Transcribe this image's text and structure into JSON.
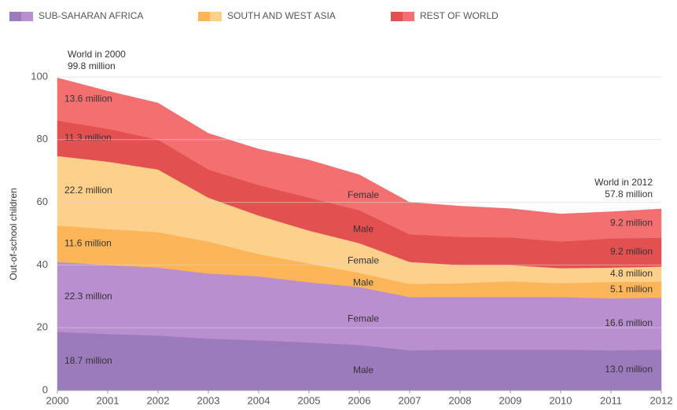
{
  "chart_data": {
    "type": "stacked_area",
    "y_label": "Out-of-school children",
    "x": [
      2000,
      2001,
      2002,
      2003,
      2004,
      2005,
      2006,
      2007,
      2008,
      2009,
      2010,
      2011,
      2012
    ],
    "xlim": [
      2000,
      2012
    ],
    "xticks": [
      2000,
      2001,
      2002,
      2003,
      2004,
      2005,
      2006,
      2007,
      2008,
      2009,
      2010,
      2011,
      2012
    ],
    "ylim": [
      0,
      100
    ],
    "yticks": [
      0,
      20,
      40,
      60,
      80,
      100
    ],
    "grid": true,
    "annotations": [
      {
        "lines": [
          "World in 2000",
          "99.8 million"
        ]
      },
      {
        "lines": [
          "World in 2012",
          "57.8 million"
        ]
      }
    ],
    "groups": [
      {
        "name": "SUB-SAHARAN AFRICA",
        "series": [
          {
            "name": "Male",
            "color": "#9c7bbd",
            "values": [
              18.7,
              18.0,
              17.5,
              16.5,
              16.0,
              15.3,
              14.5,
              12.8,
              13.0,
              13.0,
              13.0,
              12.8,
              13.0
            ],
            "value_labels": [
              "18.7 million",
              null,
              null,
              null,
              null,
              null,
              null,
              null,
              null,
              null,
              null,
              null,
              "13.0 million"
            ]
          },
          {
            "name": "Female",
            "color": "#b98fcf",
            "values": [
              22.3,
              22.0,
              21.7,
              20.8,
              20.4,
              19.2,
              18.5,
              17.0,
              16.8,
              16.8,
              16.8,
              16.6,
              16.6
            ],
            "value_labels": [
              "22.3 million",
              null,
              null,
              null,
              null,
              null,
              null,
              null,
              null,
              null,
              null,
              null,
              "16.6 million"
            ]
          }
        ]
      },
      {
        "name": "SOUTH AND WEST ASIA",
        "series": [
          {
            "name": "Male",
            "color": "#fdb55a",
            "values": [
              11.6,
              11.5,
              11.3,
              10.2,
              7.1,
              6.0,
              4.5,
              4.2,
              4.4,
              5.0,
              4.4,
              5.2,
              5.1
            ],
            "value_labels": [
              "11.6 million",
              null,
              null,
              null,
              null,
              null,
              null,
              null,
              null,
              null,
              null,
              null,
              "5.1 million"
            ]
          },
          {
            "name": "Female",
            "color": "#fdd08c",
            "values": [
              22.2,
              21.5,
              20.0,
              14.0,
              12.3,
              10.5,
              9.5,
              7.0,
              5.8,
              5.2,
              4.8,
              4.6,
              4.8
            ],
            "value_labels": [
              "22.2 million",
              null,
              null,
              null,
              null,
              null,
              null,
              null,
              null,
              null,
              null,
              null,
              "4.8 million"
            ]
          }
        ]
      },
      {
        "name": "REST OF WORLD",
        "series": [
          {
            "name": "Male",
            "color": "#e2504f",
            "values": [
              11.3,
              10.5,
              9.5,
              9.0,
              9.7,
              10.5,
              10.5,
              8.8,
              9.0,
              8.8,
              8.5,
              9.3,
              9.2
            ],
            "value_labels": [
              "11.3 million",
              null,
              null,
              null,
              null,
              null,
              null,
              null,
              null,
              null,
              null,
              null,
              "9.2 million"
            ]
          },
          {
            "name": "Female",
            "color": "#f47070",
            "values": [
              13.6,
              12.0,
              11.7,
              11.5,
              11.5,
              12.0,
              11.3,
              10.2,
              9.8,
              9.2,
              8.8,
              8.5,
              9.2
            ],
            "value_labels": [
              "13.6 million",
              null,
              null,
              null,
              null,
              null,
              null,
              null,
              null,
              null,
              null,
              null,
              "9.2 million"
            ]
          }
        ]
      }
    ]
  }
}
